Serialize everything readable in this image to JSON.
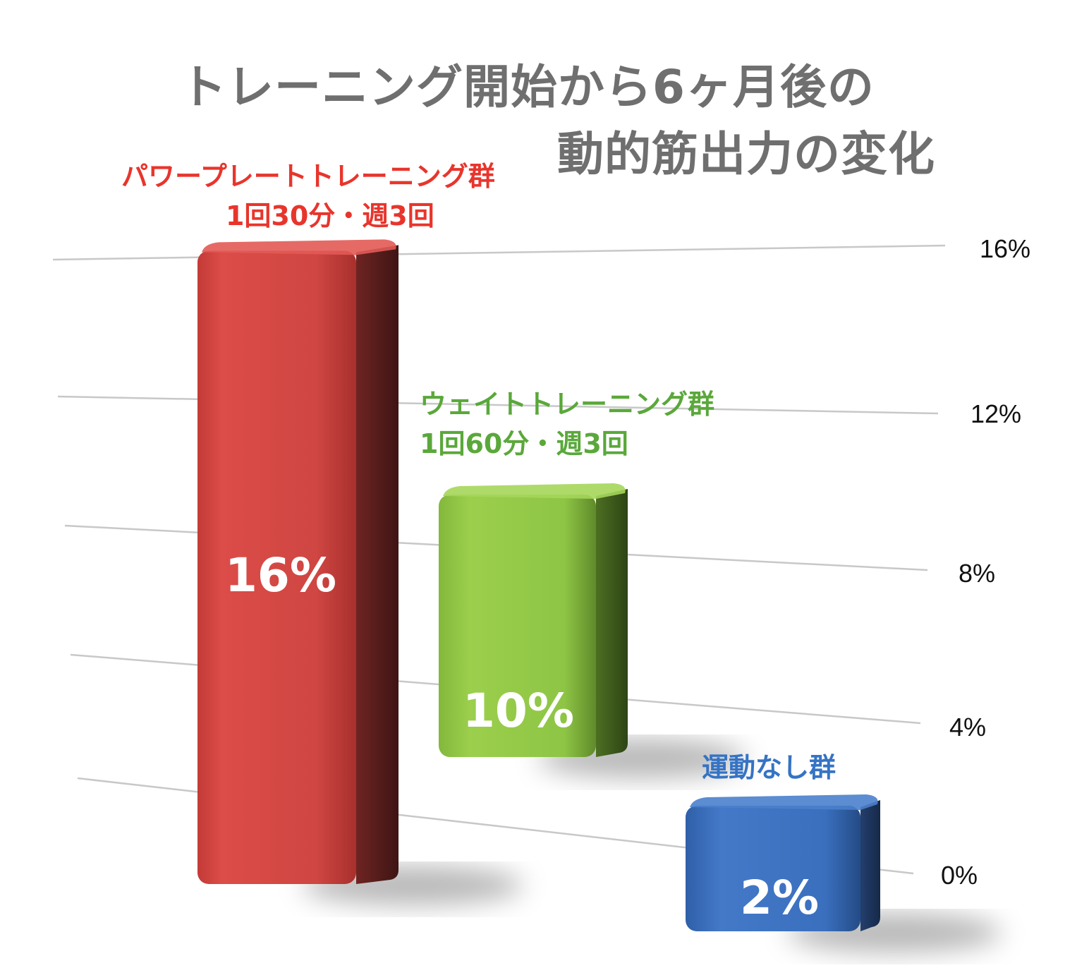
{
  "colors": {
    "title": "#6f6f6f",
    "group1": "#e8352c",
    "group2": "#5aa83a",
    "group3": "#3573c4",
    "bar1": "#d94a46",
    "bar2": "#95c94a",
    "bar3": "#3e72bf",
    "grid": "#c8c8c8"
  },
  "chart_data": {
    "type": "bar",
    "title": "トレーニング開始から6ヶ月後の 動的筋出力の変化",
    "title_lines": [
      "トレーニング開始から6ヶ月後の",
      "動的筋出力の変化"
    ],
    "categories": [
      "パワープレートトレーニング群 1回30分・週3回",
      "ウェイトトレーニング群 1回60分・週3回",
      "運動なし群"
    ],
    "category_lines": [
      [
        "パワープレートトレーニング群",
        "1回30分・週3回"
      ],
      [
        "ウェイトトレーニング群",
        "1回60分・週3回"
      ],
      [
        "運動なし群"
      ]
    ],
    "values": [
      16,
      10,
      2
    ],
    "data_labels": [
      "16%",
      "10%",
      "2%"
    ],
    "y_ticks": [
      "16%",
      "12%",
      "8%",
      "4%",
      "0%"
    ],
    "ylim": [
      0,
      16
    ],
    "axis_position": "right",
    "grid": true,
    "style": "3d"
  }
}
